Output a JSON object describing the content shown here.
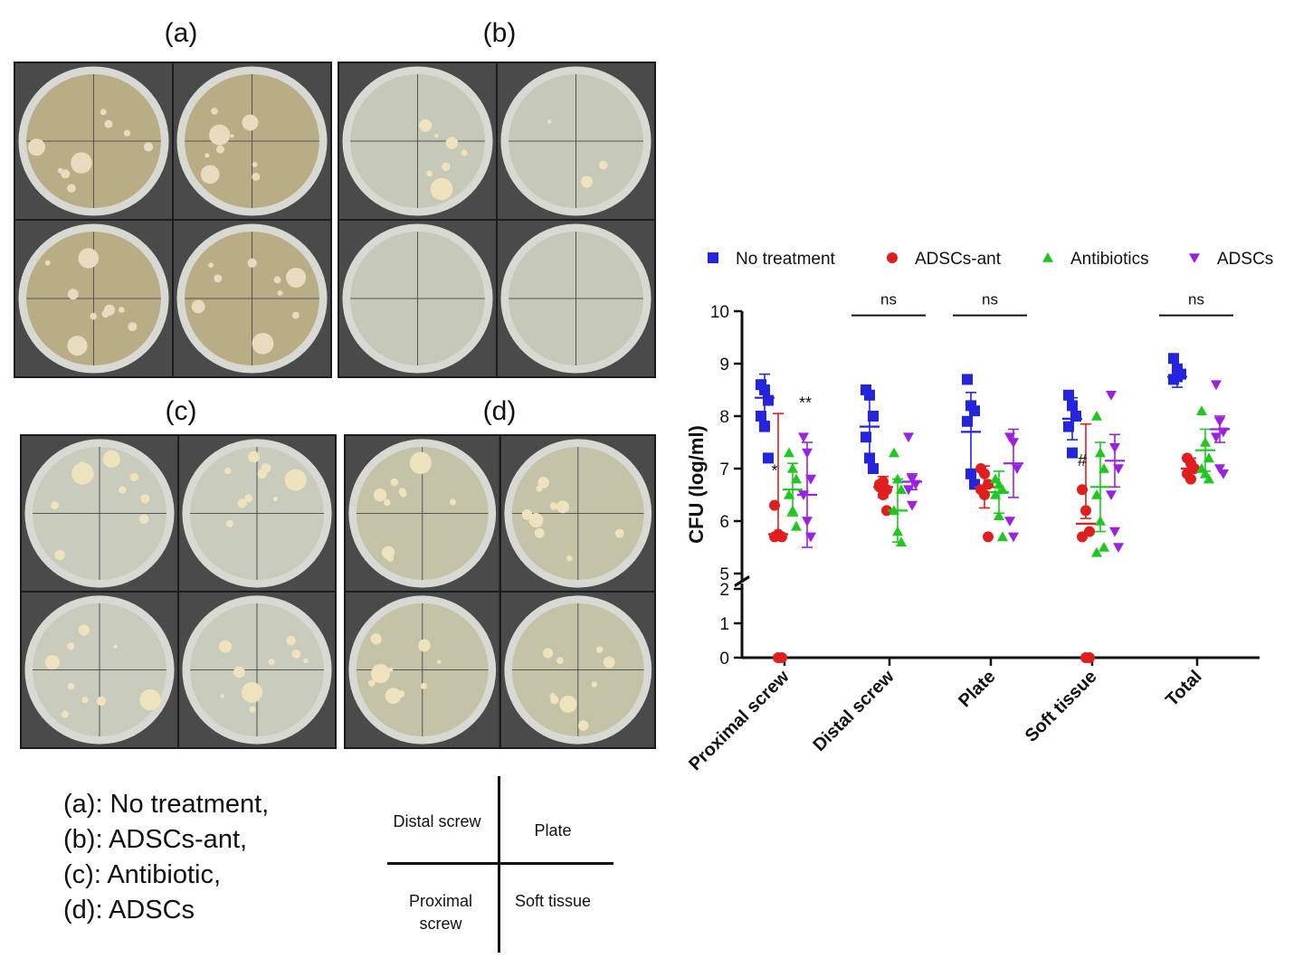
{
  "panels": {
    "a": {
      "label": "(a)",
      "tint": "#b8ad84"
    },
    "b": {
      "label": "(b)",
      "tint": "#c6c8b8"
    },
    "c": {
      "label": "(c)",
      "tint": "#c9ccbd"
    },
    "d": {
      "label": "(d)",
      "tint": "#c4c3a8"
    }
  },
  "group_legend": [
    "(a): No treatment,",
    "(b): ADSCs-ant,",
    "(c): Antibiotic,",
    "(d): ADSCs"
  ],
  "quadrant_key": {
    "top_left": "Distal screw",
    "top_right": "Plate",
    "bottom_left": "Proximal screw",
    "bottom_right": "Soft tissue"
  },
  "chart_data": {
    "type": "scatter",
    "ylabel": "CFU (log/ml)",
    "y_ticks_upper": [
      "5",
      "6",
      "7",
      "8",
      "9",
      "10"
    ],
    "y_ticks_lower": [
      "0",
      "1",
      "2"
    ],
    "ylim_upper": [
      5,
      10
    ],
    "ylim_lower": [
      0,
      2
    ],
    "categories": [
      "Proximal screw",
      "Distal screw",
      "Plate",
      "Soft tissue",
      "Total"
    ],
    "series": [
      {
        "name": "No treatment",
        "color": "#2323e0",
        "marker": "square",
        "points": [
          [
            8.6,
            8.5,
            8.3,
            8.0,
            7.8,
            7.2
          ],
          [
            8.5,
            8.4,
            8.0,
            7.6,
            7.2,
            7.0
          ],
          [
            8.7,
            8.2,
            8.1,
            7.9,
            6.9,
            6.7
          ],
          [
            8.4,
            8.2,
            8.0,
            7.8,
            7.3
          ],
          [
            9.1,
            8.9,
            8.8,
            8.7,
            8.75
          ]
        ],
        "means": [
          8.35,
          7.8,
          7.7,
          7.95,
          8.75
        ],
        "sd": [
          0.45,
          0.6,
          0.75,
          0.4,
          0.2
        ]
      },
      {
        "name": "ADSCs-ant",
        "color": "#e01e1e",
        "marker": "circle",
        "points": [
          [
            6.3,
            5.75,
            5.7,
            5.7,
            0,
            0
          ],
          [
            6.7,
            6.75,
            6.6,
            6.65,
            6.5,
            6.2
          ],
          [
            7.0,
            6.9,
            6.7,
            6.6,
            6.5,
            5.7
          ],
          [
            6.6,
            6.2,
            5.8,
            5.7,
            0,
            0
          ],
          [
            7.2,
            7.1,
            7.0,
            6.9,
            6.8
          ]
        ],
        "means": [
          5.75,
          6.65,
          6.65,
          5.95,
          7.0
        ],
        "sd": [
          2.3,
          0.2,
          0.4,
          1.9,
          0.2
        ]
      },
      {
        "name": "Antibiotics",
        "color": "#1ec81e",
        "marker": "triangle-up",
        "points": [
          [
            7.3,
            7.0,
            6.8,
            6.5,
            6.2,
            5.9
          ],
          [
            7.3,
            6.8,
            6.6,
            6.2,
            5.8,
            5.6
          ],
          [
            6.8,
            6.7,
            6.6,
            6.5,
            6.1,
            5.7
          ],
          [
            8.0,
            7.3,
            7.0,
            6.5,
            6.0,
            5.5,
            5.4
          ],
          [
            8.1,
            7.5,
            7.2,
            7.0,
            6.9,
            6.8
          ]
        ],
        "means": [
          6.6,
          6.2,
          6.55,
          6.65,
          7.35
        ],
        "sd": [
          0.5,
          0.6,
          0.4,
          0.85,
          0.4
        ]
      },
      {
        "name": "ADSCs",
        "color": "#9b20e0",
        "marker": "triangle-down",
        "points": [
          [
            7.6,
            7.3,
            6.8,
            6.5,
            6.0,
            5.7
          ],
          [
            7.6,
            6.8,
            6.7,
            6.6,
            6.3
          ],
          [
            7.6,
            7.5,
            7.0,
            6.0,
            5.7
          ],
          [
            8.4,
            7.4,
            7.0,
            6.5,
            5.8,
            5.5
          ],
          [
            8.6,
            7.9,
            7.7,
            7.6,
            7.0,
            6.9
          ]
        ],
        "means": [
          6.5,
          6.75,
          7.1,
          7.15,
          7.75
        ],
        "sd": [
          1.0,
          0.15,
          0.65,
          0.5,
          0.25
        ]
      }
    ],
    "annotations": [
      {
        "text": "*",
        "category": 0,
        "series": 1,
        "y": 6.85
      },
      {
        "text": "**",
        "category": 0,
        "series": 3,
        "y": 8.15
      },
      {
        "text": "#",
        "category": 3,
        "series": 1,
        "y": 7.05
      },
      {
        "text": "ns",
        "category": 1,
        "y": 10.3,
        "bracket": true
      },
      {
        "text": "ns",
        "category": 2,
        "y": 10.3,
        "bracket": true
      },
      {
        "text": "ns",
        "category": 4,
        "y": 10.3,
        "bracket": true
      }
    ]
  }
}
